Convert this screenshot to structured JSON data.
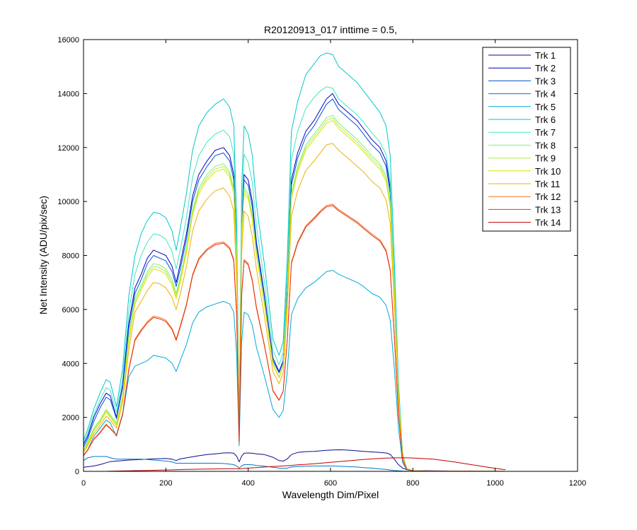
{
  "chart_data": {
    "type": "line",
    "title": "R20120913_017 inttime = 0.5,",
    "xlabel": "Wavelength Dim/Pixel",
    "ylabel": "Net Intensity (ADU/pix/sec)",
    "xlim": [
      0,
      1200
    ],
    "ylim": [
      0,
      16000
    ],
    "xticks": [
      0,
      200,
      400,
      600,
      800,
      1000,
      1200
    ],
    "yticks": [
      0,
      2000,
      4000,
      6000,
      8000,
      10000,
      12000,
      14000,
      16000
    ],
    "xtick_labels": [
      "0",
      "200",
      "400",
      "600",
      "800",
      "1000",
      "1200"
    ],
    "ytick_labels": [
      "0",
      "2000",
      "4000",
      "6000",
      "8000",
      "10000",
      "12000",
      "14000",
      "16000"
    ],
    "legend_position": "top-right",
    "x": [
      0,
      10,
      25,
      40,
      55,
      65,
      80,
      95,
      110,
      125,
      140,
      155,
      170,
      185,
      200,
      215,
      225,
      235,
      250,
      265,
      280,
      300,
      320,
      340,
      355,
      365,
      372,
      378,
      384,
      390,
      400,
      410,
      420,
      440,
      460,
      475,
      485,
      495,
      505,
      520,
      540,
      560,
      575,
      590,
      605,
      620,
      635,
      650,
      665,
      680,
      700,
      720,
      735,
      745,
      755,
      765,
      775,
      785,
      800,
      850,
      900,
      950,
      1000,
      1025
    ],
    "series": [
      {
        "name": "Trk 1",
        "color": "#0a0a8c",
        "values": [
          150,
          170,
          200,
          250,
          320,
          360,
          380,
          400,
          420,
          430,
          440,
          450,
          460,
          470,
          480,
          450,
          400,
          460,
          500,
          540,
          580,
          620,
          650,
          680,
          690,
          670,
          560,
          350,
          560,
          670,
          680,
          670,
          650,
          620,
          520,
          400,
          380,
          460,
          620,
          700,
          730,
          740,
          760,
          780,
          790,
          800,
          790,
          780,
          760,
          740,
          720,
          700,
          680,
          630,
          450,
          250,
          120,
          60,
          30,
          20,
          10,
          5,
          3,
          0
        ]
      },
      {
        "name": "Trk 2",
        "color": "#0000cc",
        "values": [
          1000,
          1300,
          2000,
          2500,
          2900,
          2800,
          2000,
          3200,
          5500,
          6800,
          7300,
          7900,
          8200,
          8100,
          8000,
          7600,
          7000,
          7700,
          8800,
          10200,
          11000,
          11500,
          11900,
          12000,
          11700,
          11000,
          8000,
          1500,
          9000,
          11000,
          10800,
          10000,
          8500,
          6500,
          4200,
          3700,
          4100,
          6800,
          10800,
          11800,
          12600,
          13000,
          13400,
          13800,
          14000,
          13600,
          13400,
          13200,
          13000,
          12700,
          12300,
          12000,
          11500,
          10500,
          7000,
          3000,
          600,
          100,
          20,
          10,
          5,
          3,
          2,
          0
        ]
      },
      {
        "name": "Trk 3",
        "color": "#0050d0",
        "values": [
          900,
          1200,
          1850,
          2350,
          2750,
          2650,
          1950,
          3100,
          5300,
          6600,
          7100,
          7700,
          8000,
          7900,
          7800,
          7400,
          6850,
          7500,
          8600,
          10000,
          10800,
          11300,
          11700,
          11800,
          11500,
          10800,
          7900,
          1480,
          8850,
          10800,
          10600,
          9800,
          8350,
          6400,
          4100,
          3650,
          4050,
          6700,
          10600,
          11600,
          12400,
          12800,
          13200,
          13600,
          13800,
          13400,
          13200,
          13000,
          12800,
          12500,
          12100,
          11800,
          11300,
          10300,
          6900,
          2950,
          590,
          95,
          20,
          10,
          5,
          3,
          2,
          0
        ]
      },
      {
        "name": "Trk 4",
        "color": "#0078c8",
        "values": [
          400,
          500,
          550,
          550,
          550,
          500,
          450,
          450,
          450,
          450,
          450,
          440,
          420,
          400,
          380,
          350,
          300,
          300,
          300,
          300,
          300,
          300,
          300,
          290,
          270,
          250,
          200,
          120,
          200,
          250,
          250,
          240,
          220,
          190,
          150,
          120,
          110,
          120,
          160,
          180,
          190,
          200,
          200,
          200,
          200,
          190,
          180,
          170,
          160,
          140,
          120,
          90,
          70,
          50,
          30,
          20,
          10,
          5,
          3,
          2,
          1,
          0,
          0,
          0
        ]
      },
      {
        "name": "Trk 5",
        "color": "#00a8d8",
        "values": [
          600,
          800,
          1300,
          1600,
          1900,
          1800,
          1300,
          2100,
          3500,
          3900,
          4000,
          4100,
          4300,
          4250,
          4200,
          4000,
          3700,
          4100,
          4700,
          5500,
          5900,
          6100,
          6200,
          6300,
          6200,
          5900,
          4300,
          950,
          4800,
          5900,
          5800,
          5400,
          4600,
          3500,
          2300,
          2000,
          2250,
          3700,
          5800,
          6400,
          6800,
          7000,
          7200,
          7400,
          7450,
          7300,
          7200,
          7100,
          7000,
          6850,
          6600,
          6450,
          6150,
          5600,
          3800,
          1600,
          320,
          55,
          12,
          6,
          3,
          2,
          1,
          0
        ]
      },
      {
        "name": "Trk 6",
        "color": "#00c8c8",
        "values": [
          1150,
          1550,
          2300,
          2900,
          3400,
          3300,
          2400,
          3800,
          6500,
          8000,
          8800,
          9300,
          9600,
          9550,
          9400,
          8900,
          8200,
          9000,
          10300,
          11900,
          12800,
          13300,
          13600,
          13800,
          13500,
          12800,
          9300,
          1700,
          10500,
          12800,
          12500,
          11700,
          9900,
          7600,
          4900,
          4300,
          4800,
          7900,
          12600,
          13700,
          14700,
          15100,
          15400,
          15500,
          15450,
          15000,
          14800,
          14600,
          14400,
          14100,
          13700,
          13300,
          12800,
          11700,
          7800,
          3300,
          650,
          110,
          25,
          12,
          5,
          3,
          2,
          0
        ]
      },
      {
        "name": "Trk 7",
        "color": "#40e8c0",
        "values": [
          1050,
          1400,
          2100,
          2650,
          3100,
          3000,
          2200,
          3450,
          5900,
          7300,
          8000,
          8500,
          8800,
          8750,
          8600,
          8150,
          7500,
          8200,
          9400,
          10900,
          11700,
          12200,
          12500,
          12650,
          12400,
          11750,
          8550,
          1580,
          9650,
          11750,
          11450,
          10700,
          9100,
          6950,
          4500,
          3950,
          4400,
          7250,
          11550,
          12600,
          13450,
          13850,
          14100,
          14250,
          14200,
          13800,
          13600,
          13400,
          13200,
          12950,
          12550,
          12200,
          11750,
          10750,
          7150,
          3050,
          600,
          100,
          22,
          11,
          5,
          3,
          2,
          0
        ]
      },
      {
        "name": "Trk 8",
        "color": "#80f080",
        "values": [
          800,
          1100,
          1600,
          1900,
          2300,
          2100,
          1800,
          2800,
          5000,
          6400,
          6900,
          7400,
          7700,
          7650,
          7500,
          7100,
          6600,
          7200,
          8300,
          9700,
          10500,
          11000,
          11300,
          11400,
          11100,
          10500,
          7700,
          1450,
          8700,
          10500,
          10300,
          9500,
          8100,
          6200,
          4000,
          3500,
          3950,
          6500,
          10300,
          11300,
          12100,
          12500,
          12800,
          13100,
          13200,
          12900,
          12700,
          12500,
          12300,
          12050,
          11700,
          11400,
          10950,
          10000,
          6700,
          2850,
          580,
          95,
          20,
          10,
          5,
          3,
          2,
          0
        ]
      },
      {
        "name": "Trk 9",
        "color": "#b0f040",
        "values": [
          780,
          1050,
          1550,
          1850,
          2250,
          2050,
          1750,
          2750,
          4900,
          6300,
          6800,
          7300,
          7600,
          7550,
          7400,
          7000,
          6500,
          7100,
          8200,
          9600,
          10400,
          10900,
          11200,
          11300,
          11000,
          10400,
          7650,
          1440,
          8650,
          10400,
          10200,
          9400,
          8050,
          6150,
          3980,
          3480,
          3930,
          6450,
          10200,
          11200,
          12000,
          12400,
          12700,
          13000,
          13100,
          12800,
          12600,
          12400,
          12200,
          11950,
          11600,
          11300,
          10850,
          9900,
          6650,
          2830,
          575,
          94,
          20,
          10,
          5,
          3,
          2,
          0
        ]
      },
      {
        "name": "Trk 10",
        "color": "#e0e000",
        "values": [
          760,
          1000,
          1500,
          1800,
          2200,
          2000,
          1700,
          2700,
          4800,
          6200,
          6700,
          7200,
          7500,
          7450,
          7300,
          6900,
          6400,
          7000,
          8100,
          9500,
          10300,
          10800,
          11100,
          11200,
          10900,
          10300,
          7600,
          1430,
          8600,
          10300,
          10100,
          9300,
          8000,
          6100,
          3960,
          3460,
          3910,
          6400,
          10100,
          11100,
          11900,
          12300,
          12600,
          12900,
          13000,
          12700,
          12500,
          12300,
          12100,
          11850,
          11500,
          11200,
          10750,
          9800,
          6600,
          2800,
          570,
          93,
          20,
          10,
          5,
          3,
          2,
          0
        ]
      },
      {
        "name": "Trk 11",
        "color": "#f0b000",
        "values": [
          700,
          950,
          1400,
          1700,
          2050,
          1900,
          1600,
          2550,
          4500,
          5900,
          6300,
          6700,
          7000,
          6950,
          6800,
          6450,
          6000,
          6550,
          7600,
          8900,
          9650,
          10100,
          10400,
          10500,
          10200,
          9650,
          7100,
          1350,
          8050,
          9650,
          9450,
          8700,
          7500,
          5700,
          3700,
          3250,
          3650,
          6000,
          9450,
          10400,
          11150,
          11500,
          11800,
          12100,
          12150,
          11900,
          11700,
          11500,
          11300,
          11100,
          10750,
          10500,
          10050,
          9200,
          6150,
          2620,
          530,
          88,
          19,
          9,
          4,
          3,
          2,
          0
        ]
      },
      {
        "name": "Trk 12",
        "color": "#f07020",
        "values": [
          600,
          800,
          1200,
          1450,
          1750,
          1600,
          1350,
          2150,
          3800,
          4900,
          5250,
          5550,
          5750,
          5700,
          5600,
          5300,
          4900,
          5400,
          6200,
          7300,
          7900,
          8250,
          8450,
          8500,
          8300,
          7850,
          5800,
          1100,
          6550,
          7850,
          7700,
          7100,
          6100,
          4650,
          3000,
          2650,
          2980,
          4900,
          7750,
          8500,
          9100,
          9400,
          9650,
          9850,
          9900,
          9700,
          9550,
          9400,
          9250,
          9050,
          8800,
          8580,
          8200,
          7500,
          5000,
          2130,
          430,
          72,
          16,
          8,
          4,
          2,
          1,
          0
        ]
      },
      {
        "name": "Trk 13",
        "color": "#e83010",
        "values": [
          580,
          780,
          1180,
          1420,
          1720,
          1580,
          1330,
          2120,
          3750,
          4850,
          5200,
          5500,
          5700,
          5650,
          5550,
          5250,
          4850,
          5350,
          6150,
          7250,
          7850,
          8200,
          8400,
          8450,
          8250,
          7800,
          5750,
          1090,
          6500,
          7800,
          7650,
          7050,
          6050,
          4620,
          2980,
          2630,
          2960,
          4870,
          7700,
          8450,
          9050,
          9350,
          9600,
          9800,
          9850,
          9650,
          9500,
          9350,
          9200,
          9000,
          8750,
          8530,
          8150,
          7450,
          4970,
          2110,
          425,
          71,
          16,
          8,
          4,
          2,
          1,
          0
        ]
      },
      {
        "name": "Trk 14",
        "color": "#c00000",
        "values": [
          0,
          0,
          0,
          0,
          0,
          5,
          10,
          15,
          20,
          25,
          30,
          35,
          40,
          45,
          50,
          55,
          60,
          65,
          70,
          75,
          80,
          85,
          90,
          95,
          100,
          100,
          100,
          90,
          100,
          110,
          120,
          130,
          140,
          160,
          180,
          190,
          200,
          210,
          220,
          240,
          260,
          280,
          300,
          320,
          340,
          360,
          380,
          400,
          420,
          440,
          460,
          480,
          490,
          495,
          500,
          500,
          500,
          500,
          495,
          450,
          350,
          230,
          110,
          60
        ]
      }
    ]
  }
}
